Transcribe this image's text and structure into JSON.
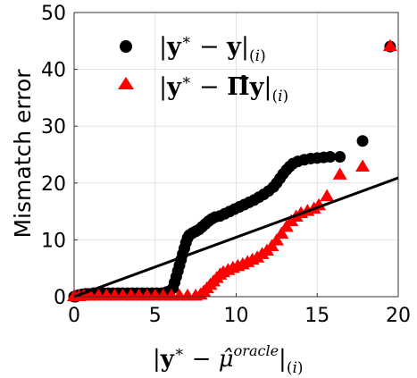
{
  "chart_data": {
    "type": "scatter",
    "xlabel": "|y* − μ̂^oracle|(i)",
    "ylabel": "Mismatch error",
    "xlim": [
      0,
      20
    ],
    "ylim": [
      0,
      50
    ],
    "xticks": [
      0,
      5,
      10,
      15,
      20
    ],
    "yticks": [
      0,
      10,
      20,
      30,
      40,
      50
    ],
    "grid": true,
    "legend_position": "top-left",
    "series": [
      {
        "name": "|y* − y|(i)",
        "marker": "circle",
        "color": "#000000",
        "points": [
          [
            0.0,
            0.0
          ],
          [
            0.1,
            0.0
          ],
          [
            0.2,
            0.2
          ],
          [
            0.3,
            0.3
          ],
          [
            0.5,
            0.4
          ],
          [
            0.7,
            0.5
          ],
          [
            0.9,
            0.5
          ],
          [
            1.2,
            0.6
          ],
          [
            1.5,
            0.6
          ],
          [
            1.8,
            0.6
          ],
          [
            2.1,
            0.6
          ],
          [
            2.4,
            0.6
          ],
          [
            2.7,
            0.6
          ],
          [
            3.0,
            0.6
          ],
          [
            3.3,
            0.6
          ],
          [
            3.6,
            0.6
          ],
          [
            3.9,
            0.6
          ],
          [
            4.2,
            0.6
          ],
          [
            4.5,
            0.6
          ],
          [
            4.8,
            0.6
          ],
          [
            5.1,
            0.6
          ],
          [
            5.4,
            0.6
          ],
          [
            5.7,
            0.8
          ],
          [
            5.9,
            1.0
          ],
          [
            6.1,
            1.5
          ],
          [
            6.2,
            2.5
          ],
          [
            6.3,
            3.5
          ],
          [
            6.4,
            4.5
          ],
          [
            6.5,
            5.5
          ],
          [
            6.6,
            6.5
          ],
          [
            6.7,
            7.5
          ],
          [
            6.8,
            8.5
          ],
          [
            6.9,
            9.5
          ],
          [
            7.0,
            10.3
          ],
          [
            7.1,
            10.8
          ],
          [
            7.3,
            11.2
          ],
          [
            7.5,
            11.5
          ],
          [
            7.7,
            11.8
          ],
          [
            7.9,
            12.3
          ],
          [
            8.1,
            12.8
          ],
          [
            8.3,
            13.3
          ],
          [
            8.5,
            13.7
          ],
          [
            8.7,
            14.0
          ],
          [
            9.0,
            14.2
          ],
          [
            9.3,
            14.6
          ],
          [
            9.6,
            15.0
          ],
          [
            9.9,
            15.4
          ],
          [
            10.2,
            15.8
          ],
          [
            10.5,
            16.2
          ],
          [
            10.8,
            16.6
          ],
          [
            11.1,
            17.0
          ],
          [
            11.4,
            17.5
          ],
          [
            11.7,
            18.0
          ],
          [
            12.0,
            18.6
          ],
          [
            12.3,
            19.3
          ],
          [
            12.5,
            20.0
          ],
          [
            12.7,
            20.8
          ],
          [
            12.9,
            21.6
          ],
          [
            13.1,
            22.3
          ],
          [
            13.3,
            22.9
          ],
          [
            13.5,
            23.4
          ],
          [
            13.8,
            23.8
          ],
          [
            14.2,
            24.1
          ],
          [
            14.6,
            24.3
          ],
          [
            15.0,
            24.4
          ],
          [
            15.4,
            24.5
          ],
          [
            15.8,
            24.6
          ],
          [
            16.4,
            24.6
          ],
          [
            17.8,
            27.4
          ],
          [
            19.5,
            44.0
          ]
        ]
      },
      {
        "name": "|y* − Π̂y|(i)",
        "marker": "triangle",
        "color": "#ff0000",
        "points": [
          [
            0.0,
            0.0
          ],
          [
            0.3,
            0.0
          ],
          [
            0.6,
            0.1
          ],
          [
            1.0,
            0.1
          ],
          [
            1.5,
            0.1
          ],
          [
            2.0,
            0.1
          ],
          [
            2.5,
            0.1
          ],
          [
            3.0,
            0.1
          ],
          [
            3.5,
            0.1
          ],
          [
            4.0,
            0.1
          ],
          [
            4.5,
            0.1
          ],
          [
            5.0,
            0.1
          ],
          [
            5.5,
            0.1
          ],
          [
            6.0,
            0.1
          ],
          [
            6.5,
            0.1
          ],
          [
            7.0,
            0.1
          ],
          [
            7.5,
            0.1
          ],
          [
            7.8,
            0.3
          ],
          [
            8.0,
            0.8
          ],
          [
            8.2,
            1.4
          ],
          [
            8.4,
            2.0
          ],
          [
            8.6,
            2.6
          ],
          [
            8.8,
            3.2
          ],
          [
            9.0,
            3.8
          ],
          [
            9.2,
            4.2
          ],
          [
            9.5,
            4.6
          ],
          [
            9.8,
            5.0
          ],
          [
            10.1,
            5.3
          ],
          [
            10.4,
            5.6
          ],
          [
            10.7,
            6.0
          ],
          [
            11.0,
            6.4
          ],
          [
            11.3,
            6.8
          ],
          [
            11.6,
            7.4
          ],
          [
            11.9,
            8.0
          ],
          [
            12.2,
            8.8
          ],
          [
            12.5,
            9.8
          ],
          [
            12.8,
            11.0
          ],
          [
            13.1,
            12.2
          ],
          [
            13.4,
            13.2
          ],
          [
            13.7,
            14.0
          ],
          [
            14.0,
            14.6
          ],
          [
            14.4,
            15.0
          ],
          [
            14.8,
            15.4
          ],
          [
            15.1,
            16.0
          ],
          [
            15.6,
            17.6
          ],
          [
            16.4,
            21.4
          ],
          [
            17.8,
            22.8
          ],
          [
            19.5,
            44.0
          ]
        ]
      },
      {
        "name": "",
        "type": "line",
        "color": "#000000",
        "points": [
          [
            0,
            0
          ],
          [
            20,
            20.9
          ]
        ]
      }
    ]
  }
}
